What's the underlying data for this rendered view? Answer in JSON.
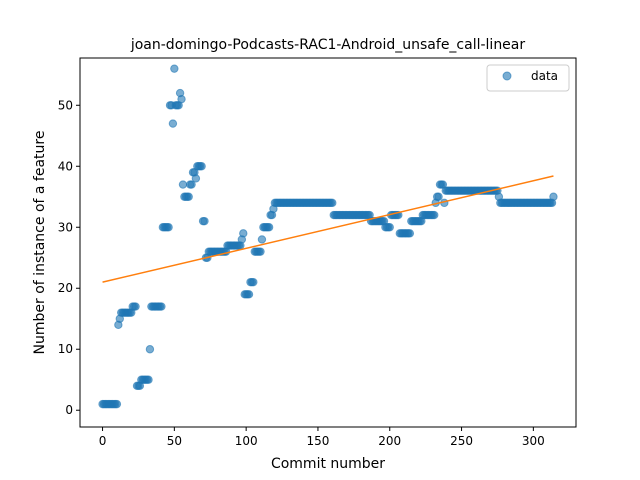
{
  "chart_data": {
    "type": "scatter",
    "title": "joan-domingo-Podcasts-RAC1-Android_unsafe_call-linear",
    "xlabel": "Commit number",
    "ylabel": "Number of instance of a feature",
    "xlim": [
      -15.7,
      329.7
    ],
    "ylim": [
      -2.75,
      57.75
    ],
    "xticks": [
      0,
      50,
      100,
      150,
      200,
      250,
      300
    ],
    "yticks": [
      0,
      10,
      20,
      30,
      40,
      50
    ],
    "legend": {
      "position": "upper-right",
      "entries": [
        "data"
      ]
    },
    "colors": {
      "data": "#1f77b4",
      "fit": "#ff7f0e"
    },
    "series": [
      {
        "name": "data",
        "points": [
          [
            0,
            1
          ],
          [
            1,
            1
          ],
          [
            2,
            1
          ],
          [
            3,
            1
          ],
          [
            4,
            1
          ],
          [
            5,
            1
          ],
          [
            6,
            1
          ],
          [
            7,
            1
          ],
          [
            8,
            1
          ],
          [
            9,
            1
          ],
          [
            10,
            1
          ],
          [
            11,
            14
          ],
          [
            12,
            15
          ],
          [
            13,
            16
          ],
          [
            14,
            16
          ],
          [
            15,
            16
          ],
          [
            16,
            16
          ],
          [
            17,
            16
          ],
          [
            18,
            16
          ],
          [
            19,
            16
          ],
          [
            20,
            16
          ],
          [
            21,
            17
          ],
          [
            22,
            17
          ],
          [
            23,
            17
          ],
          [
            24,
            4
          ],
          [
            25,
            4
          ],
          [
            26,
            4
          ],
          [
            27,
            5
          ],
          [
            28,
            5
          ],
          [
            29,
            5
          ],
          [
            30,
            5
          ],
          [
            31,
            5
          ],
          [
            32,
            5
          ],
          [
            33,
            10
          ],
          [
            34,
            17
          ],
          [
            35,
            17
          ],
          [
            36,
            17
          ],
          [
            37,
            17
          ],
          [
            38,
            17
          ],
          [
            39,
            17
          ],
          [
            40,
            17
          ],
          [
            41,
            17
          ],
          [
            42,
            30
          ],
          [
            43,
            30
          ],
          [
            44,
            30
          ],
          [
            45,
            30
          ],
          [
            46,
            30
          ],
          [
            47,
            50
          ],
          [
            48,
            50
          ],
          [
            49,
            47
          ],
          [
            50,
            56
          ],
          [
            51,
            50
          ],
          [
            52,
            50
          ],
          [
            53,
            50
          ],
          [
            54,
            52
          ],
          [
            55,
            51
          ],
          [
            56,
            37
          ],
          [
            57,
            35
          ],
          [
            58,
            35
          ],
          [
            59,
            35
          ],
          [
            60,
            35
          ],
          [
            61,
            37
          ],
          [
            62,
            37
          ],
          [
            63,
            39
          ],
          [
            64,
            39
          ],
          [
            65,
            38
          ],
          [
            66,
            40
          ],
          [
            67,
            40
          ],
          [
            68,
            40
          ],
          [
            69,
            40
          ],
          [
            70,
            31
          ],
          [
            71,
            31
          ],
          [
            72,
            25
          ],
          [
            73,
            25
          ],
          [
            74,
            26
          ],
          [
            75,
            26
          ],
          [
            76,
            26
          ],
          [
            77,
            26
          ],
          [
            78,
            26
          ],
          [
            79,
            26
          ],
          [
            80,
            26
          ],
          [
            81,
            26
          ],
          [
            82,
            26
          ],
          [
            83,
            26
          ],
          [
            84,
            26
          ],
          [
            85,
            26
          ],
          [
            86,
            26
          ],
          [
            87,
            27
          ],
          [
            88,
            27
          ],
          [
            89,
            27
          ],
          [
            90,
            27
          ],
          [
            91,
            27
          ],
          [
            92,
            27
          ],
          [
            93,
            27
          ],
          [
            94,
            27
          ],
          [
            95,
            27
          ],
          [
            96,
            27
          ],
          [
            97,
            28
          ],
          [
            98,
            29
          ],
          [
            99,
            19
          ],
          [
            100,
            19
          ],
          [
            101,
            19
          ],
          [
            102,
            19
          ],
          [
            103,
            21
          ],
          [
            104,
            21
          ],
          [
            105,
            21
          ],
          [
            106,
            26
          ],
          [
            107,
            26
          ],
          [
            108,
            26
          ],
          [
            109,
            26
          ],
          [
            110,
            26
          ],
          [
            111,
            28
          ],
          [
            112,
            30
          ],
          [
            113,
            30
          ],
          [
            114,
            30
          ],
          [
            115,
            30
          ],
          [
            116,
            30
          ],
          [
            117,
            32
          ],
          [
            118,
            32
          ],
          [
            119,
            33
          ],
          [
            120,
            34
          ],
          [
            121,
            34
          ],
          [
            122,
            34
          ],
          [
            123,
            34
          ],
          [
            124,
            34
          ],
          [
            125,
            34
          ],
          [
            126,
            34
          ],
          [
            127,
            34
          ],
          [
            128,
            34
          ],
          [
            129,
            34
          ],
          [
            130,
            34
          ],
          [
            131,
            34
          ],
          [
            132,
            34
          ],
          [
            133,
            34
          ],
          [
            134,
            34
          ],
          [
            135,
            34
          ],
          [
            136,
            34
          ],
          [
            137,
            34
          ],
          [
            138,
            34
          ],
          [
            139,
            34
          ],
          [
            140,
            34
          ],
          [
            141,
            34
          ],
          [
            142,
            34
          ],
          [
            143,
            34
          ],
          [
            144,
            34
          ],
          [
            145,
            34
          ],
          [
            146,
            34
          ],
          [
            147,
            34
          ],
          [
            148,
            34
          ],
          [
            149,
            34
          ],
          [
            150,
            34
          ],
          [
            151,
            34
          ],
          [
            152,
            34
          ],
          [
            153,
            34
          ],
          [
            154,
            34
          ],
          [
            155,
            34
          ],
          [
            156,
            34
          ],
          [
            157,
            34
          ],
          [
            158,
            34
          ],
          [
            159,
            34
          ],
          [
            160,
            34
          ],
          [
            161,
            32
          ],
          [
            162,
            32
          ],
          [
            163,
            32
          ],
          [
            164,
            32
          ],
          [
            165,
            32
          ],
          [
            166,
            32
          ],
          [
            167,
            32
          ],
          [
            168,
            32
          ],
          [
            169,
            32
          ],
          [
            170,
            32
          ],
          [
            171,
            32
          ],
          [
            172,
            32
          ],
          [
            173,
            32
          ],
          [
            174,
            32
          ],
          [
            175,
            32
          ],
          [
            176,
            32
          ],
          [
            177,
            32
          ],
          [
            178,
            32
          ],
          [
            179,
            32
          ],
          [
            180,
            32
          ],
          [
            181,
            32
          ],
          [
            182,
            32
          ],
          [
            183,
            32
          ],
          [
            184,
            32
          ],
          [
            185,
            32
          ],
          [
            186,
            32
          ],
          [
            187,
            31
          ],
          [
            188,
            31
          ],
          [
            189,
            31
          ],
          [
            190,
            31
          ],
          [
            191,
            31
          ],
          [
            192,
            31
          ],
          [
            193,
            31
          ],
          [
            194,
            31
          ],
          [
            195,
            31
          ],
          [
            196,
            31
          ],
          [
            197,
            30
          ],
          [
            198,
            30
          ],
          [
            199,
            30
          ],
          [
            200,
            30
          ],
          [
            201,
            32
          ],
          [
            202,
            32
          ],
          [
            203,
            32
          ],
          [
            204,
            32
          ],
          [
            205,
            32
          ],
          [
            206,
            32
          ],
          [
            207,
            29
          ],
          [
            208,
            29
          ],
          [
            209,
            29
          ],
          [
            210,
            29
          ],
          [
            211,
            29
          ],
          [
            212,
            29
          ],
          [
            213,
            29
          ],
          [
            214,
            29
          ],
          [
            215,
            31
          ],
          [
            216,
            31
          ],
          [
            217,
            31
          ],
          [
            218,
            31
          ],
          [
            219,
            31
          ],
          [
            220,
            31
          ],
          [
            221,
            31
          ],
          [
            222,
            31
          ],
          [
            223,
            32
          ],
          [
            224,
            32
          ],
          [
            225,
            32
          ],
          [
            226,
            32
          ],
          [
            227,
            32
          ],
          [
            228,
            32
          ],
          [
            229,
            32
          ],
          [
            230,
            32
          ],
          [
            231,
            32
          ],
          [
            232,
            34
          ],
          [
            233,
            35
          ],
          [
            234,
            35
          ],
          [
            235,
            37
          ],
          [
            236,
            37
          ],
          [
            237,
            37
          ],
          [
            238,
            34
          ],
          [
            239,
            36
          ],
          [
            240,
            36
          ],
          [
            241,
            36
          ],
          [
            242,
            36
          ],
          [
            243,
            36
          ],
          [
            244,
            36
          ],
          [
            245,
            36
          ],
          [
            246,
            36
          ],
          [
            247,
            36
          ],
          [
            248,
            36
          ],
          [
            249,
            36
          ],
          [
            250,
            36
          ],
          [
            251,
            36
          ],
          [
            252,
            36
          ],
          [
            253,
            36
          ],
          [
            254,
            36
          ],
          [
            255,
            36
          ],
          [
            256,
            36
          ],
          [
            257,
            36
          ],
          [
            258,
            36
          ],
          [
            259,
            36
          ],
          [
            260,
            36
          ],
          [
            261,
            36
          ],
          [
            262,
            36
          ],
          [
            263,
            36
          ],
          [
            264,
            36
          ],
          [
            265,
            36
          ],
          [
            266,
            36
          ],
          [
            267,
            36
          ],
          [
            268,
            36
          ],
          [
            269,
            36
          ],
          [
            270,
            36
          ],
          [
            271,
            36
          ],
          [
            272,
            36
          ],
          [
            273,
            36
          ],
          [
            274,
            36
          ],
          [
            275,
            36
          ],
          [
            276,
            35
          ],
          [
            277,
            34
          ],
          [
            278,
            34
          ],
          [
            279,
            34
          ],
          [
            280,
            34
          ],
          [
            281,
            34
          ],
          [
            282,
            34
          ],
          [
            283,
            34
          ],
          [
            284,
            34
          ],
          [
            285,
            34
          ],
          [
            286,
            34
          ],
          [
            287,
            34
          ],
          [
            288,
            34
          ],
          [
            289,
            34
          ],
          [
            290,
            34
          ],
          [
            291,
            34
          ],
          [
            292,
            34
          ],
          [
            293,
            34
          ],
          [
            294,
            34
          ],
          [
            295,
            34
          ],
          [
            296,
            34
          ],
          [
            297,
            34
          ],
          [
            298,
            34
          ],
          [
            299,
            34
          ],
          [
            300,
            34
          ],
          [
            301,
            34
          ],
          [
            302,
            34
          ],
          [
            303,
            34
          ],
          [
            304,
            34
          ],
          [
            305,
            34
          ],
          [
            306,
            34
          ],
          [
            307,
            34
          ],
          [
            308,
            34
          ],
          [
            309,
            34
          ],
          [
            310,
            34
          ],
          [
            311,
            34
          ],
          [
            312,
            34
          ],
          [
            313,
            34
          ],
          [
            314,
            35
          ]
        ]
      },
      {
        "type": "line",
        "points": [
          [
            0,
            21.0
          ],
          [
            314,
            38.4
          ]
        ]
      }
    ]
  }
}
